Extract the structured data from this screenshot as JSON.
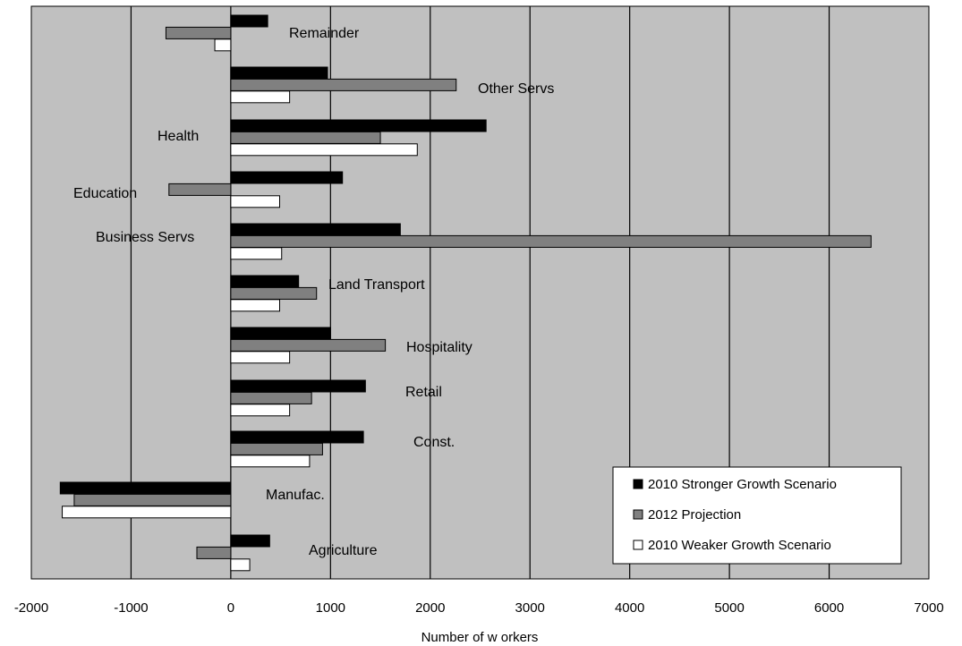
{
  "chart_data": {
    "type": "bar",
    "orientation": "horizontal",
    "title": "",
    "xlabel": "Number of w orkers",
    "ylabel": "",
    "xlim": [
      -2000,
      7000
    ],
    "xticks": [
      -2000,
      -1000,
      0,
      1000,
      2000,
      3000,
      4000,
      5000,
      6000,
      7000
    ],
    "xtick_labels": [
      "-2000",
      "-1000",
      "0",
      "1000",
      "2000",
      "3000",
      "4000",
      "5000",
      "6000",
      "7000"
    ],
    "grid": "vertical gridlines on",
    "legend_position": "bottom-right",
    "categories": [
      "Remainder",
      "Other Servs",
      "Health",
      "Education",
      "Business Servs",
      "Land Transport",
      "Hospitality",
      "Retail",
      "Const.",
      "Manufac.",
      "Agriculture"
    ],
    "series": [
      {
        "name": "2010 Stronger Growth Scenario",
        "color": "#000000",
        "values": [
          370,
          970,
          2560,
          1120,
          1700,
          680,
          1000,
          1350,
          1330,
          -1710,
          390
        ]
      },
      {
        "name": "2012 Projection",
        "color": "#808080",
        "values": [
          -650,
          2260,
          1500,
          -620,
          6420,
          860,
          1550,
          810,
          920,
          -1570,
          -340
        ]
      },
      {
        "name": "2010 Weaker Growth Scenario",
        "color": "#ffffff",
        "values": [
          -160,
          590,
          1870,
          490,
          510,
          490,
          590,
          590,
          790,
          -1690,
          190
        ]
      }
    ],
    "colors": {
      "plot_background": "#c0c0c0",
      "gridline": "#000000",
      "bar_stroke": "#000000"
    }
  }
}
